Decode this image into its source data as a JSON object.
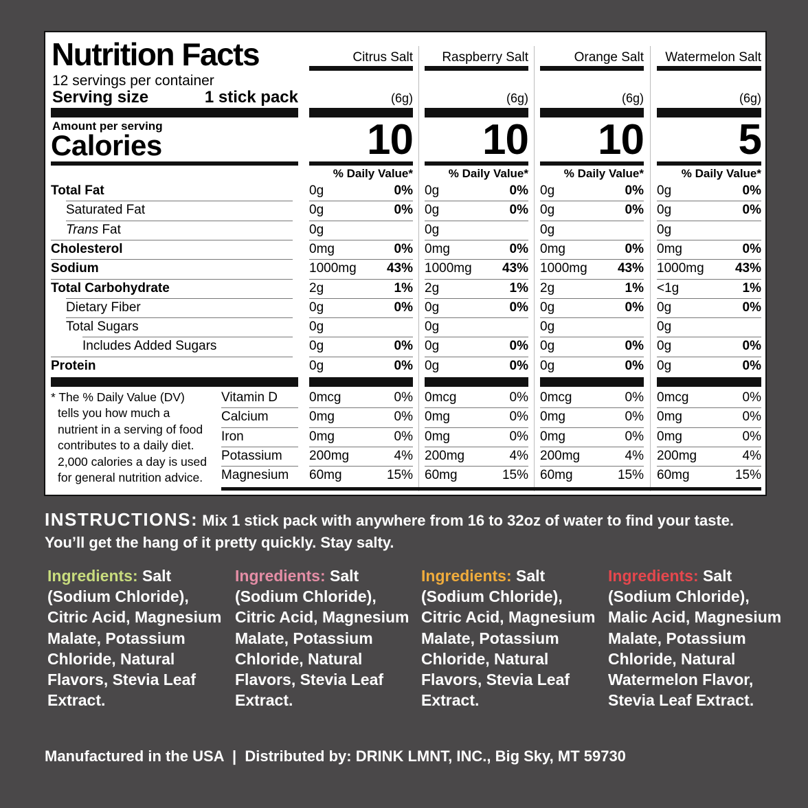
{
  "label": {
    "title": "Nutrition Facts",
    "servings_per_container": "12 servings per container",
    "serving_size_label": "Serving size",
    "serving_size_value": "1 stick pack",
    "amount_per_serving": "Amount per serving",
    "calories_label": "Calories",
    "dv_header": "% Daily Value*",
    "flavors": [
      {
        "name": "Citrus Salt",
        "grams": "(6g)",
        "calories": "10"
      },
      {
        "name": "Raspberry Salt",
        "grams": "(6g)",
        "calories": "10"
      },
      {
        "name": "Orange Salt",
        "grams": "(6g)",
        "calories": "10"
      },
      {
        "name": "Watermelon Salt",
        "grams": "(6g)",
        "calories": "5"
      }
    ],
    "nutrients": [
      {
        "pre": "",
        "label": "Total Fat",
        "bold": true,
        "indent": 0,
        "values": [
          [
            "0g",
            "0%"
          ],
          [
            "0g",
            "0%"
          ],
          [
            "0g",
            "0%"
          ],
          [
            "0g",
            "0%"
          ]
        ]
      },
      {
        "pre": "",
        "label": "Saturated Fat",
        "bold": false,
        "indent": 1,
        "values": [
          [
            "0g",
            "0%"
          ],
          [
            "0g",
            "0%"
          ],
          [
            "0g",
            "0%"
          ],
          [
            "0g",
            "0%"
          ]
        ]
      },
      {
        "pre": "Trans",
        "label": " Fat",
        "bold": false,
        "indent": 1,
        "values": [
          [
            "0g",
            ""
          ],
          [
            "0g",
            ""
          ],
          [
            "0g",
            ""
          ],
          [
            "0g",
            ""
          ]
        ]
      },
      {
        "pre": "",
        "label": "Cholesterol",
        "bold": true,
        "indent": 0,
        "values": [
          [
            "0mg",
            "0%"
          ],
          [
            "0mg",
            "0%"
          ],
          [
            "0mg",
            "0%"
          ],
          [
            "0mg",
            "0%"
          ]
        ]
      },
      {
        "pre": "",
        "label": "Sodium",
        "bold": true,
        "indent": 0,
        "values": [
          [
            "1000mg",
            "43%"
          ],
          [
            "1000mg",
            "43%"
          ],
          [
            "1000mg",
            "43%"
          ],
          [
            "1000mg",
            "43%"
          ]
        ]
      },
      {
        "pre": "",
        "label": "Total Carbohydrate",
        "bold": true,
        "indent": 0,
        "values": [
          [
            "2g",
            "1%"
          ],
          [
            "2g",
            "1%"
          ],
          [
            "2g",
            "1%"
          ],
          [
            "<1g",
            "1%"
          ]
        ]
      },
      {
        "pre": "",
        "label": "Dietary Fiber",
        "bold": false,
        "indent": 1,
        "values": [
          [
            "0g",
            "0%"
          ],
          [
            "0g",
            "0%"
          ],
          [
            "0g",
            "0%"
          ],
          [
            "0g",
            "0%"
          ]
        ]
      },
      {
        "pre": "",
        "label": "Total Sugars",
        "bold": false,
        "indent": 1,
        "values": [
          [
            "0g",
            ""
          ],
          [
            "0g",
            ""
          ],
          [
            "0g",
            ""
          ],
          [
            "0g",
            ""
          ]
        ]
      },
      {
        "pre": "",
        "label": "Includes Added Sugars",
        "bold": false,
        "indent": 2,
        "values": [
          [
            "0g",
            "0%"
          ],
          [
            "0g",
            "0%"
          ],
          [
            "0g",
            "0%"
          ],
          [
            "0g",
            "0%"
          ]
        ]
      },
      {
        "pre": "",
        "label": "Protein",
        "bold": true,
        "indent": 0,
        "values": [
          [
            "0g",
            "0%"
          ],
          [
            "0g",
            "0%"
          ],
          [
            "0g",
            "0%"
          ],
          [
            "0g",
            "0%"
          ]
        ]
      }
    ],
    "vitamins": [
      {
        "label": "Vitamin D",
        "values": [
          [
            "0mcg",
            "0%"
          ],
          [
            "0mcg",
            "0%"
          ],
          [
            "0mcg",
            "0%"
          ],
          [
            "0mcg",
            "0%"
          ]
        ]
      },
      {
        "label": "Calcium",
        "values": [
          [
            "0mg",
            "0%"
          ],
          [
            "0mg",
            "0%"
          ],
          [
            "0mg",
            "0%"
          ],
          [
            "0mg",
            "0%"
          ]
        ]
      },
      {
        "label": "Iron",
        "values": [
          [
            "0mg",
            "0%"
          ],
          [
            "0mg",
            "0%"
          ],
          [
            "0mg",
            "0%"
          ],
          [
            "0mg",
            "0%"
          ]
        ]
      },
      {
        "label": "Potassium",
        "values": [
          [
            "200mg",
            "4%"
          ],
          [
            "200mg",
            "4%"
          ],
          [
            "200mg",
            "4%"
          ],
          [
            "200mg",
            "4%"
          ]
        ]
      },
      {
        "label": "Magnesium",
        "values": [
          [
            "60mg",
            "15%"
          ],
          [
            "60mg",
            "15%"
          ],
          [
            "60mg",
            "15%"
          ],
          [
            "60mg",
            "15%"
          ]
        ]
      }
    ],
    "footnote_lines": [
      "* The % Daily Value (DV)",
      "tells you how much a",
      "nutrient in a serving of food",
      "contributes to a daily diet.",
      "2,000 calories a day is used",
      "for general nutrition advice."
    ]
  },
  "instructions": {
    "label": "INSTRUCTIONS:",
    "text": " Mix 1 stick pack with anywhere from 16 to 32oz of water to find your taste. You’ll get the hang of it pretty quickly. Stay salty."
  },
  "ingredients": [
    {
      "label": "Ingredients:",
      "color": "#c9dd7e",
      "text": " Salt (Sodium Chloride), Citric Acid, Magnesium Malate, Potassium Chloride, Natural Flavors, Stevia Leaf Extract."
    },
    {
      "label": "Ingredients:",
      "color": "#e58ea6",
      "text": " Salt (Sodium Chloride), Citric Acid, Magnesium Malate, Potassium Chloride, Natural Flavors, Stevia Leaf Extract."
    },
    {
      "label": "Ingredients:",
      "color": "#f0ac3c",
      "text": " Salt (Sodium Chloride), Citric Acid, Magnesium Malate, Potassium Chloride, Natural Flavors, Stevia Leaf Extract."
    },
    {
      "label": "Ingredients:",
      "color": "#e6474d",
      "text": " Salt (Sodium Chloride), Malic Acid, Magnesium Malate, Potassium Chloride, Natural Watermelon Flavor, Stevia Leaf Extract."
    }
  ],
  "footer": "Manufactured in the USA  |  Distributed by: DRINK LMNT, INC., Big Sky, MT 59730"
}
